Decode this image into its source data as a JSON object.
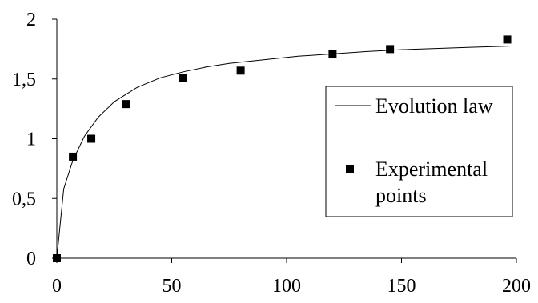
{
  "chart_data": {
    "type": "scatter",
    "title": "",
    "xlabel": "",
    "ylabel": "",
    "xlim": [
      0,
      200
    ],
    "ylim": [
      0,
      2
    ],
    "x_ticks": [
      0,
      50,
      100,
      150,
      200
    ],
    "y_ticks": [
      0,
      0.5,
      1,
      1.5,
      2
    ],
    "x_tick_labels": [
      "0",
      "50",
      "100",
      "150",
      "200"
    ],
    "y_tick_labels": [
      "0",
      "0,5",
      "1",
      "1,5",
      "2"
    ],
    "grid": false,
    "legend_position": "right",
    "series": [
      {
        "name": "Evolution law",
        "kind": "line",
        "color": "#000000",
        "x": [
          0,
          3,
          7,
          12,
          18,
          25,
          35,
          45,
          55,
          65,
          75,
          90,
          105,
          120,
          135,
          150,
          165,
          180,
          197
        ],
        "y": [
          0,
          0.58,
          0.82,
          1.02,
          1.18,
          1.31,
          1.43,
          1.51,
          1.56,
          1.6,
          1.63,
          1.66,
          1.69,
          1.71,
          1.73,
          1.745,
          1.755,
          1.765,
          1.775
        ]
      },
      {
        "name": "Experimental points",
        "legend_lines": [
          "Experimental",
          "points"
        ],
        "kind": "scatter",
        "marker": "square",
        "color": "#000000",
        "x": [
          0,
          7,
          15,
          30,
          55,
          80,
          120,
          145,
          196
        ],
        "y": [
          0,
          0.85,
          1.0,
          1.29,
          1.51,
          1.57,
          1.71,
          1.75,
          1.83
        ]
      }
    ]
  }
}
